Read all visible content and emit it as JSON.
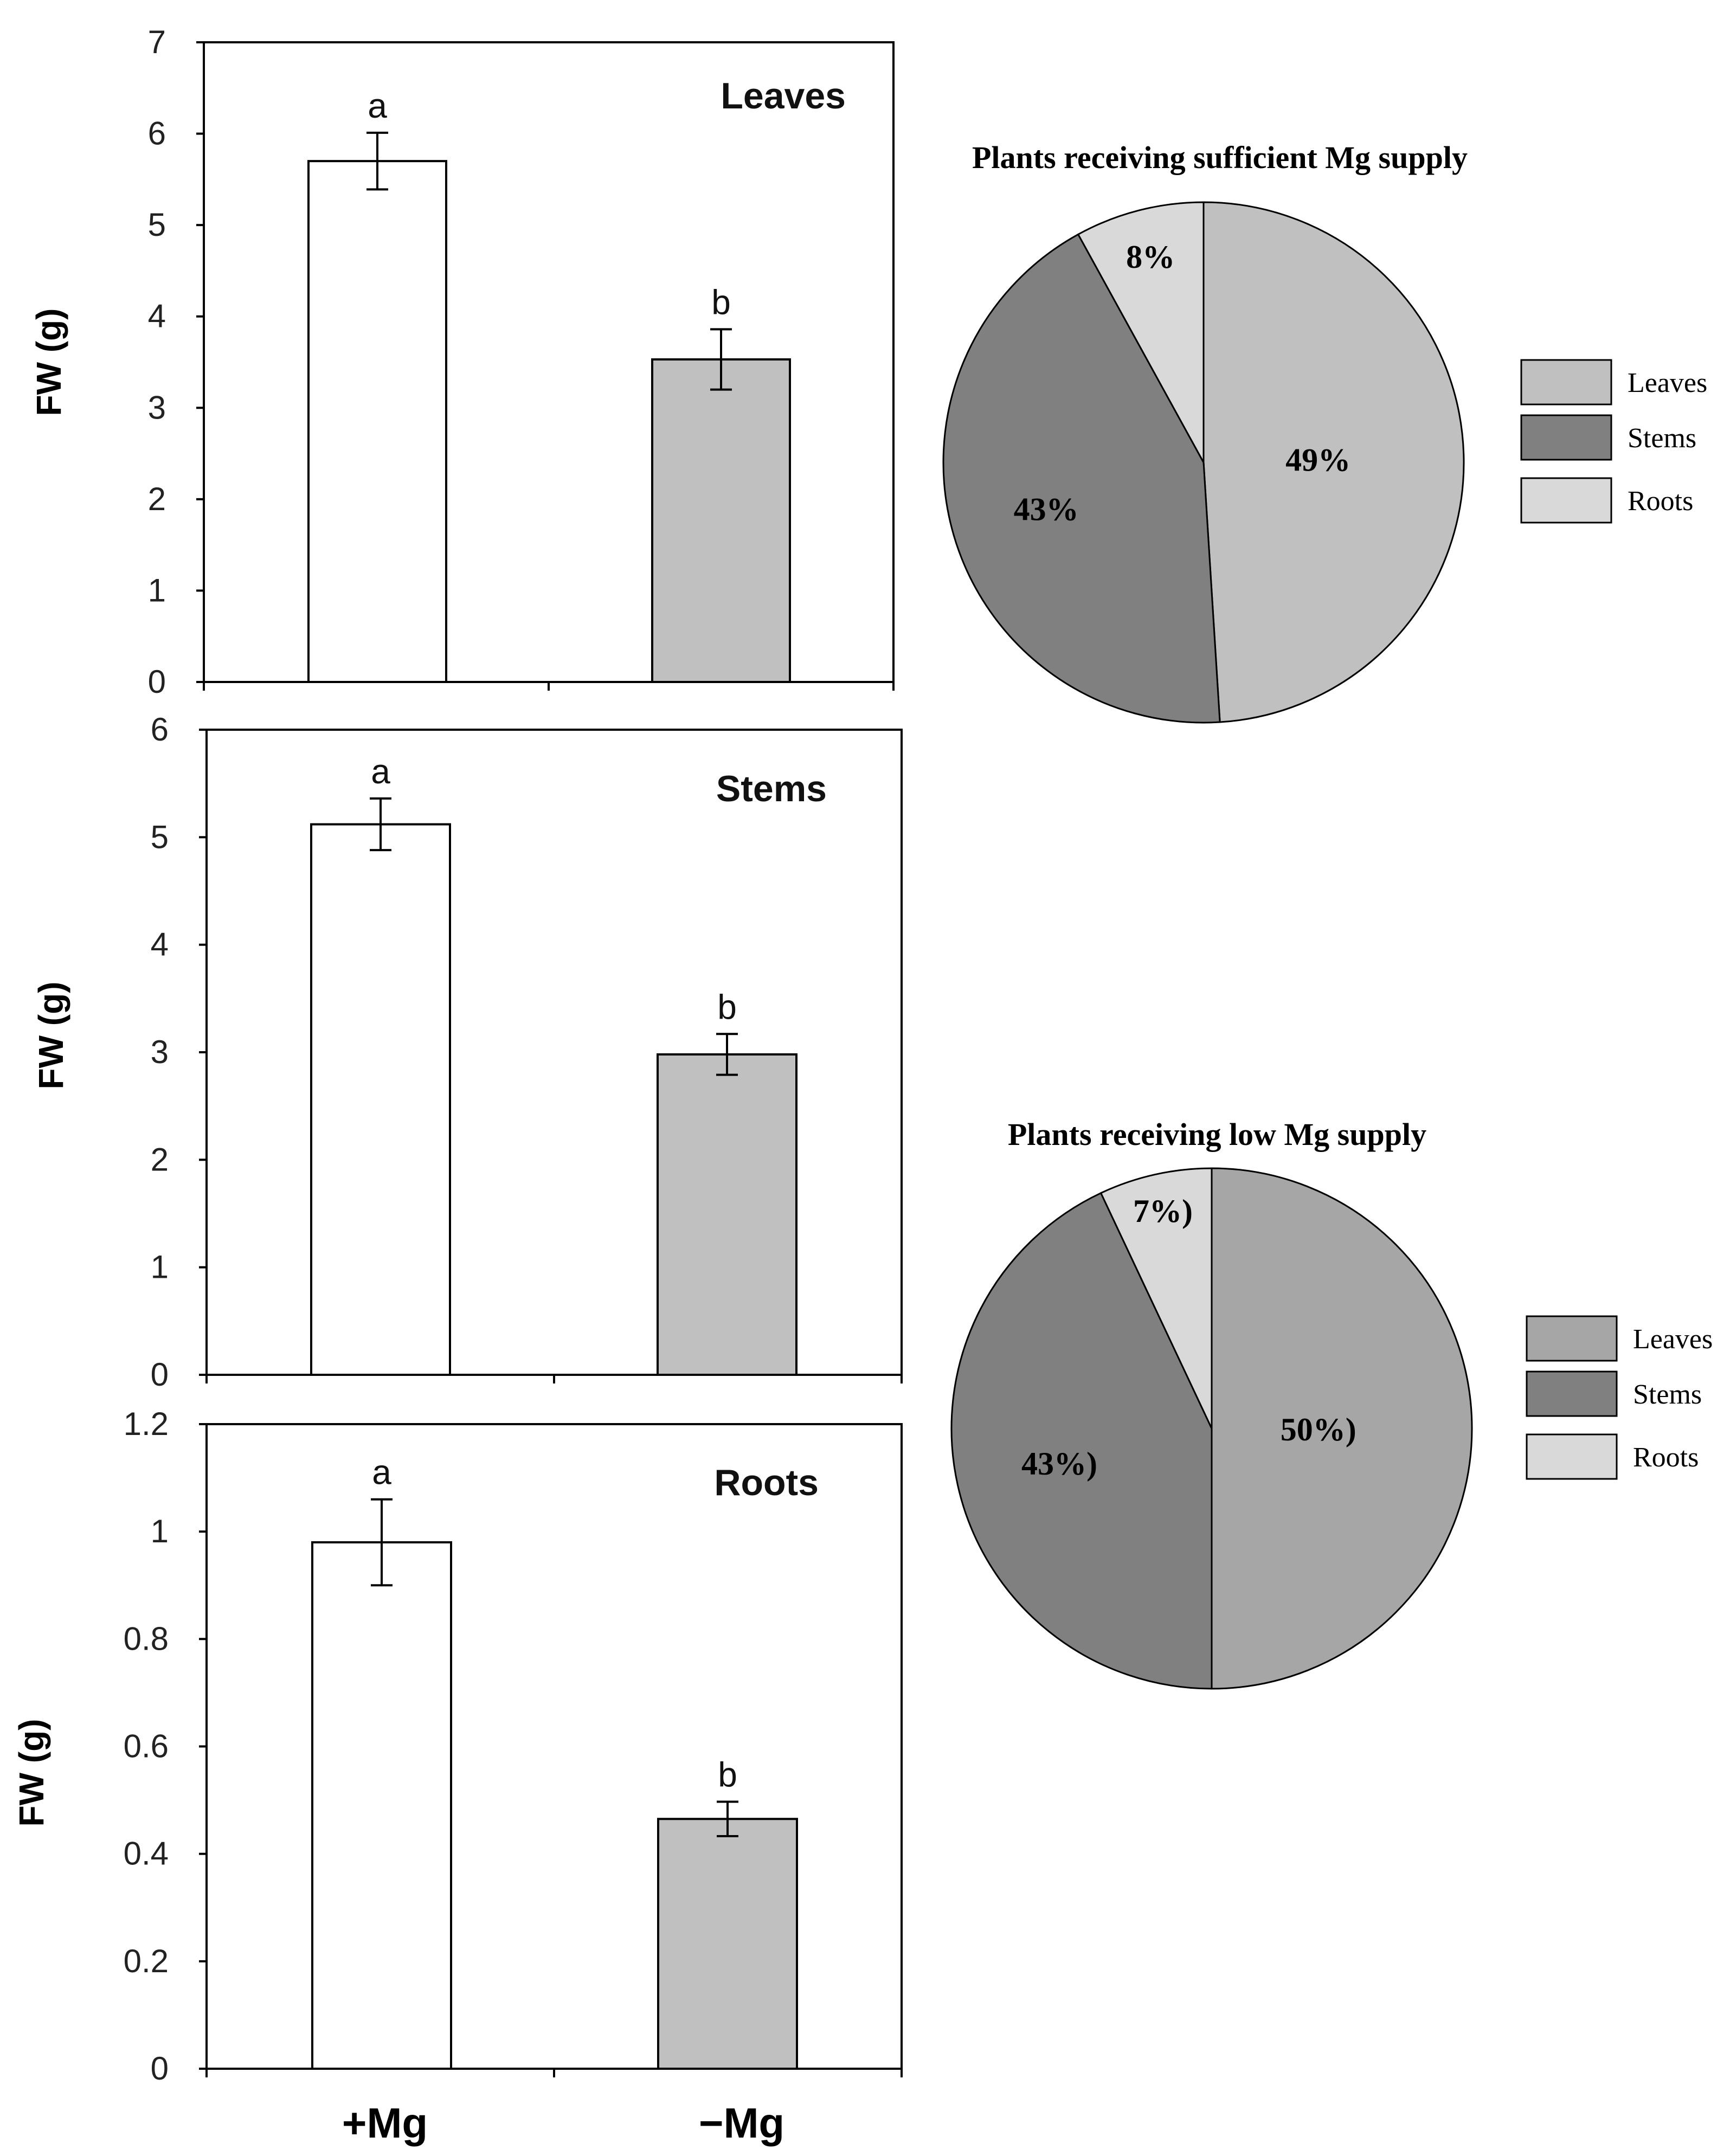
{
  "chart_data": [
    {
      "type": "bar",
      "title": "Leaves",
      "ylabel": "FW (g)",
      "xlabel": "",
      "categories": [
        "+Mg",
        "−Mg"
      ],
      "values": [
        5.7,
        3.53
      ],
      "errors": [
        0.31,
        0.33
      ],
      "significance": [
        "a",
        "b"
      ],
      "colors": [
        "#ffffff",
        "#c0c0c0"
      ],
      "ylim": [
        0,
        7
      ],
      "yticks": [
        0,
        1,
        2,
        3,
        4,
        5,
        6,
        7
      ],
      "ytick_labels": [
        "0",
        "1",
        "2",
        "3",
        "4",
        "5",
        "6",
        "7"
      ],
      "grid": false
    },
    {
      "type": "bar",
      "title": "Stems",
      "ylabel": "FW (g)",
      "xlabel": "",
      "categories": [
        "+Mg",
        "−Mg"
      ],
      "values": [
        5.12,
        2.98
      ],
      "errors": [
        0.24,
        0.19
      ],
      "significance": [
        "a",
        "b"
      ],
      "colors": [
        "#ffffff",
        "#c0c0c0"
      ],
      "ylim": [
        0,
        6
      ],
      "yticks": [
        0,
        1,
        2,
        3,
        4,
        5,
        6
      ],
      "ytick_labels": [
        "0",
        "1",
        "2",
        "3",
        "4",
        "5",
        "6"
      ],
      "grid": false
    },
    {
      "type": "bar",
      "title": "Roots",
      "ylabel": "FW (g)",
      "xlabel": "",
      "categories": [
        "+Mg",
        "−Mg"
      ],
      "values": [
        0.98,
        0.465
      ],
      "errors": [
        0.08,
        0.032
      ],
      "significance": [
        "a",
        "b"
      ],
      "colors": [
        "#ffffff",
        "#c0c0c0"
      ],
      "ylim": [
        0,
        1.2
      ],
      "yticks": [
        0,
        0.2,
        0.4,
        0.6,
        0.8,
        1,
        1.2
      ],
      "ytick_labels": [
        "0",
        "0.2",
        "0.4",
        "0.6",
        "0.8",
        "1",
        "1.2"
      ],
      "x_tick_labels": [
        "+Mg",
        "−Mg"
      ],
      "grid": false
    },
    {
      "type": "pie",
      "title": "Plants receiving sufficient Mg supply",
      "labels": [
        "Leaves",
        "Stems",
        "Roots"
      ],
      "values": [
        49,
        43,
        8
      ],
      "slice_labels": [
        "49%",
        "43%",
        "8%"
      ],
      "colors": [
        "#c0c0c0",
        "#808080",
        "#d9d9d9"
      ],
      "legend": [
        "Leaves",
        "Stems",
        "Roots"
      ],
      "legend_position": "right"
    },
    {
      "type": "pie",
      "title": "Plants receiving low Mg supply",
      "labels": [
        "Leaves",
        "Stems",
        "Roots"
      ],
      "values": [
        50,
        43,
        7
      ],
      "slice_labels": [
        "50%)",
        "43%)",
        "7%)"
      ],
      "colors": [
        "#a6a6a6",
        "#808080",
        "#d9d9d9"
      ],
      "legend": [
        "Leaves",
        "Stems",
        "Roots"
      ],
      "legend_position": "right"
    }
  ]
}
